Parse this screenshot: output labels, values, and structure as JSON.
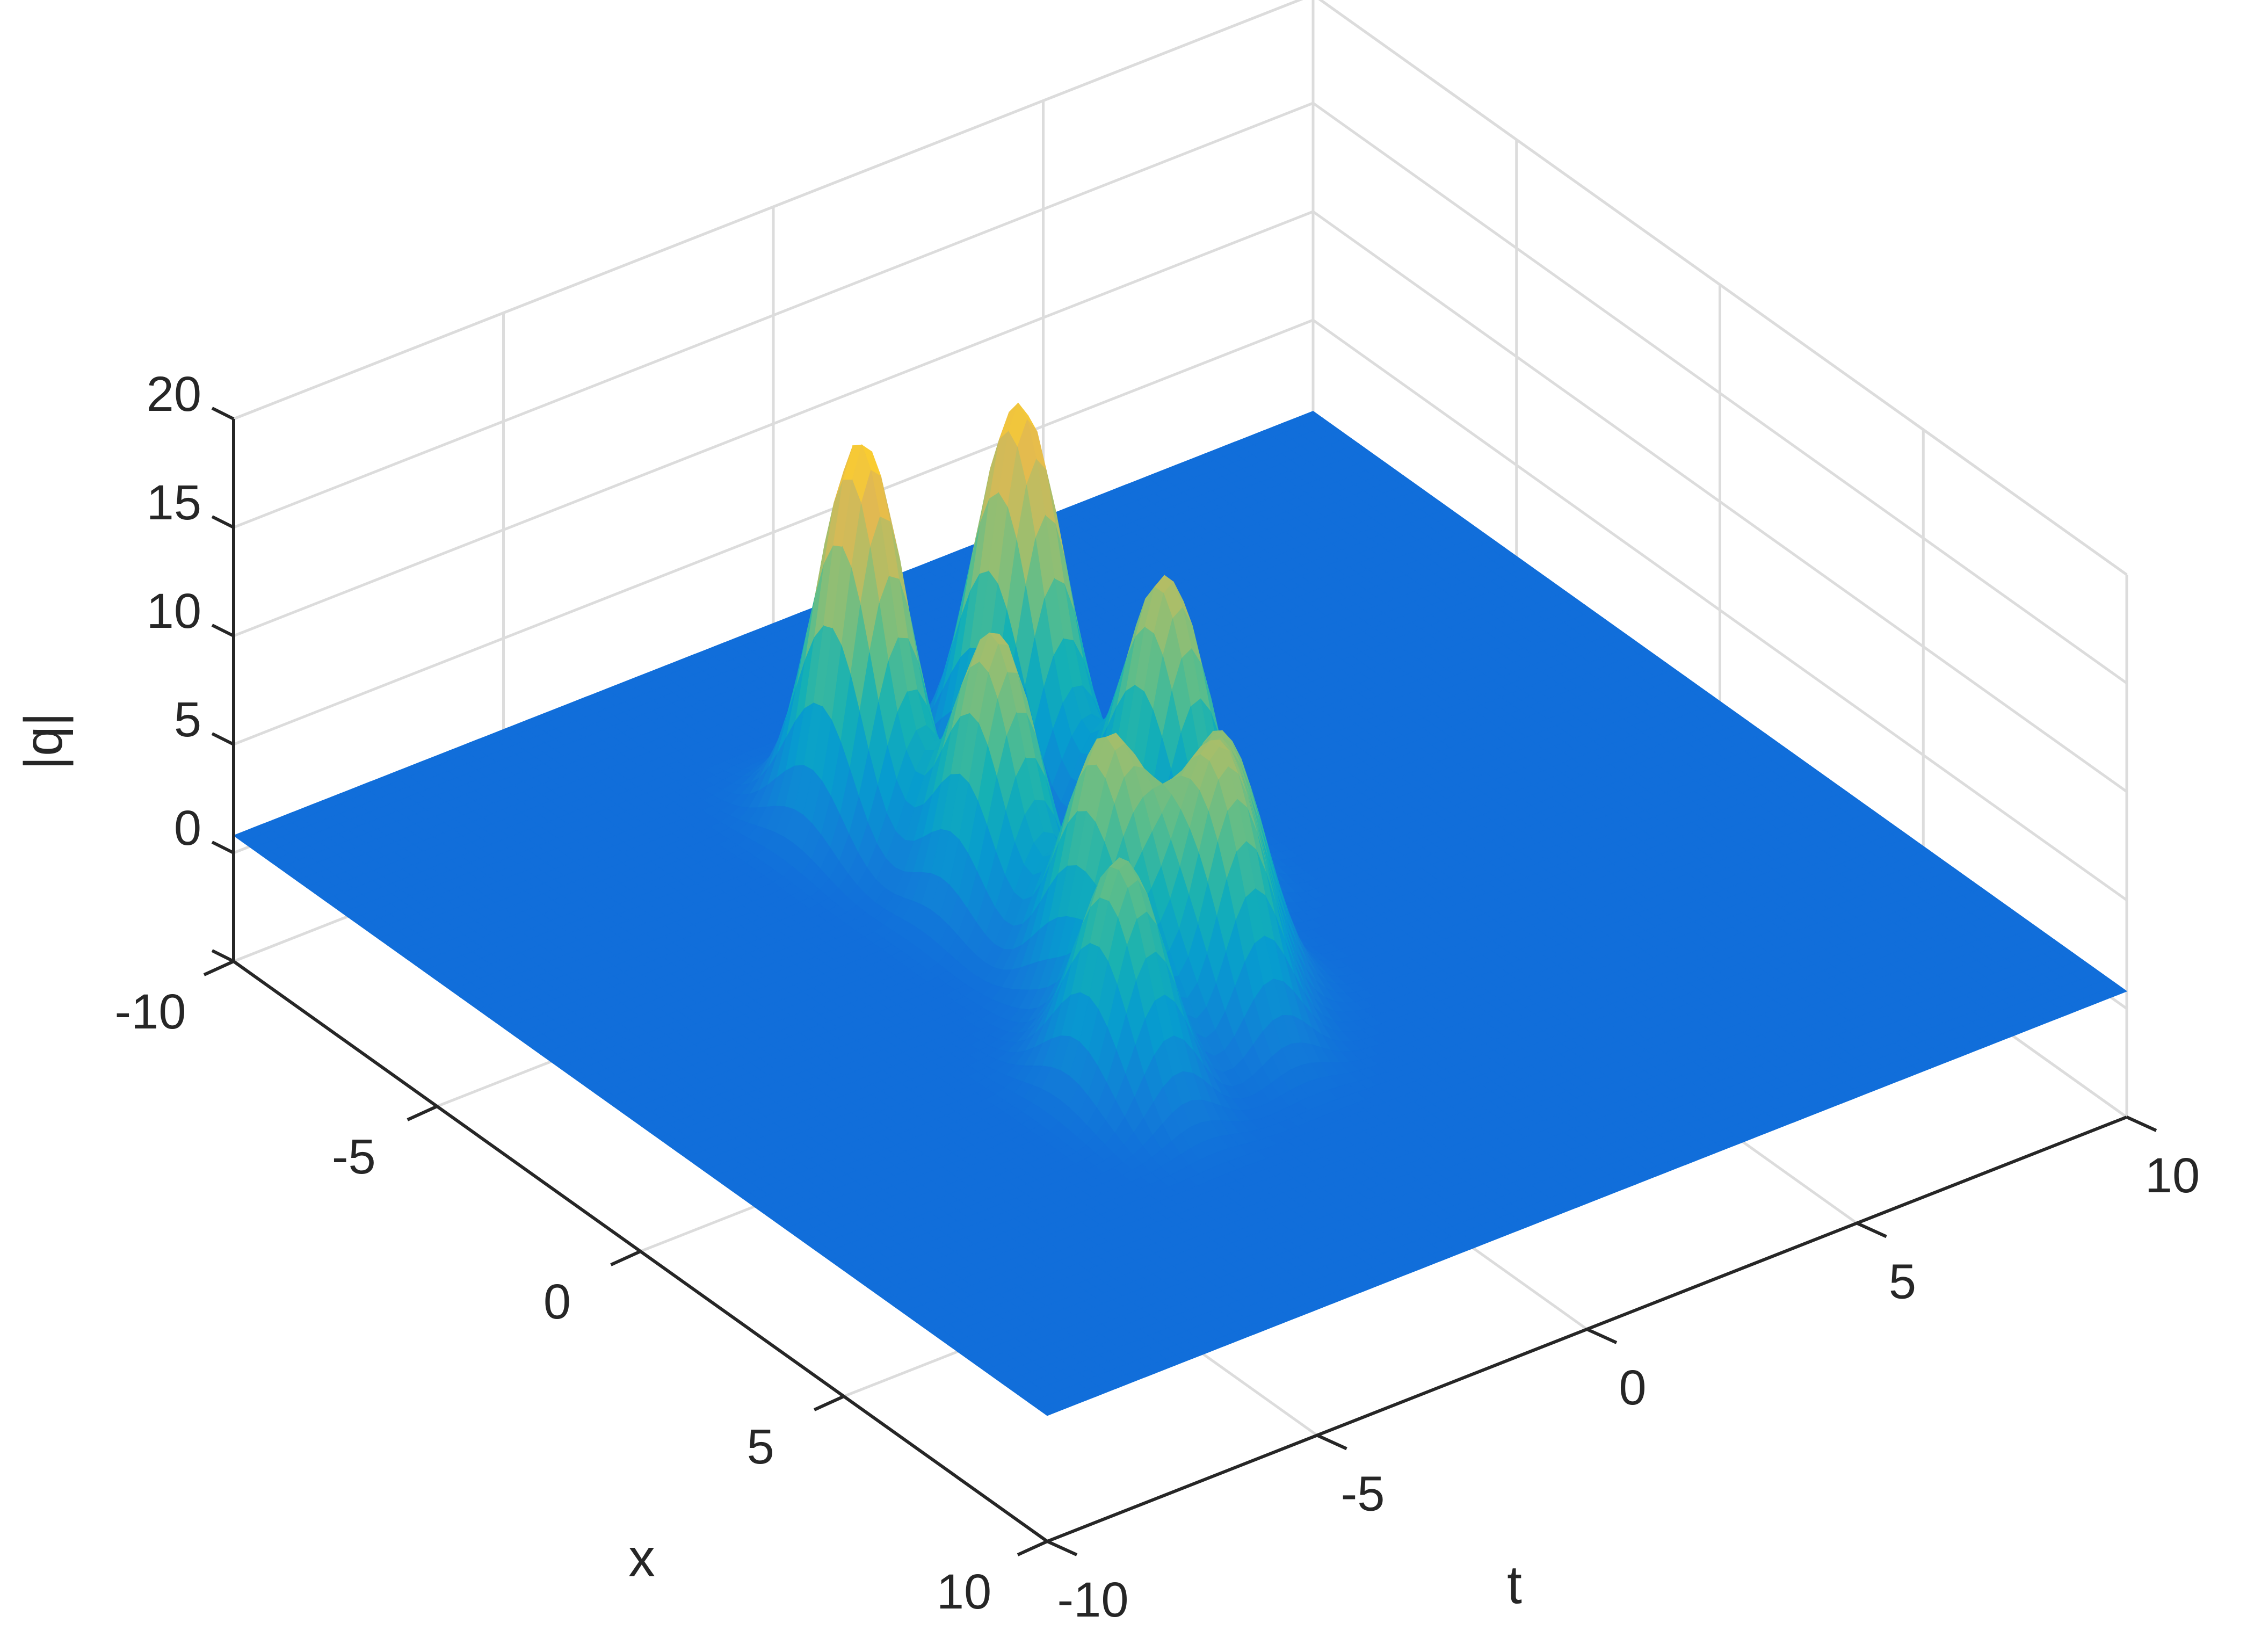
{
  "chart_data": {
    "type": "surface",
    "title": "",
    "xlabel": "x",
    "ylabel": "t",
    "zlabel": "|q|",
    "xlim": [
      -10,
      10
    ],
    "ylim": [
      -10,
      10
    ],
    "zlim": [
      -5,
      20
    ],
    "x_ticks": [
      "-10",
      "-5",
      "0",
      "5",
      "10"
    ],
    "y_ticks": [
      "-10",
      "-5",
      "0",
      "5",
      "10"
    ],
    "z_ticks": [
      "0",
      "5",
      "10",
      "15",
      "20"
    ],
    "x_tick_values": [
      -10,
      -5,
      0,
      5,
      10
    ],
    "y_tick_values": [
      -10,
      -5,
      0,
      5,
      10
    ],
    "z_tick_values": [
      0,
      5,
      10,
      15,
      20
    ],
    "background_level": 0.8,
    "colormap": "parula",
    "grid": true,
    "peaks": [
      {
        "x": -4.5,
        "t": -2.5,
        "height": 19.0
      },
      {
        "x": -4.2,
        "t": 0.2,
        "height": 18.5
      },
      {
        "x": -1.5,
        "t": -2.3,
        "height": 14.0
      },
      {
        "x": -1.0,
        "t": 0.5,
        "height": 14.5
      },
      {
        "x": 1.5,
        "t": -2.5,
        "height": 13.0
      },
      {
        "x": 3.5,
        "t": -3.7,
        "height": 11.5
      },
      {
        "x": 3.0,
        "t": -1.5,
        "height": 12.0
      },
      {
        "x": 1.8,
        "t": -0.6,
        "height": 11.0
      }
    ]
  }
}
